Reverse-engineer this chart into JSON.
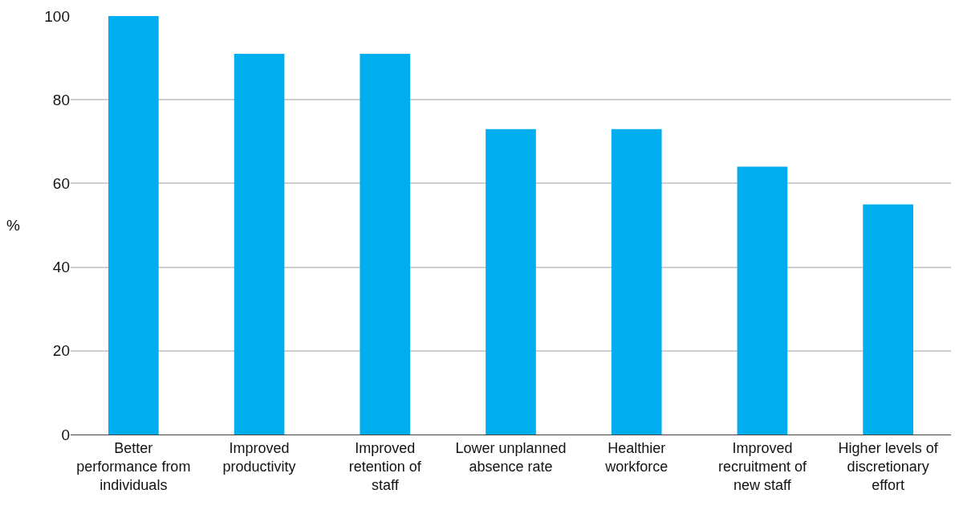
{
  "chart_data": {
    "type": "bar",
    "ylabel": "%",
    "categories": [
      "Better performance from individuals",
      "Improved productivity",
      "Improved retention of staff",
      "Lower unplanned absence rate",
      "Healthier workforce",
      "Improved recruitment of new staff",
      "Higher levels of discretionary effort"
    ],
    "values": [
      100,
      91,
      91,
      73,
      73,
      64,
      55
    ],
    "color": "#00aeef",
    "ylim": [
      0,
      100
    ],
    "yticks": [
      0,
      20,
      40,
      60,
      80,
      100
    ],
    "grid": "y"
  }
}
